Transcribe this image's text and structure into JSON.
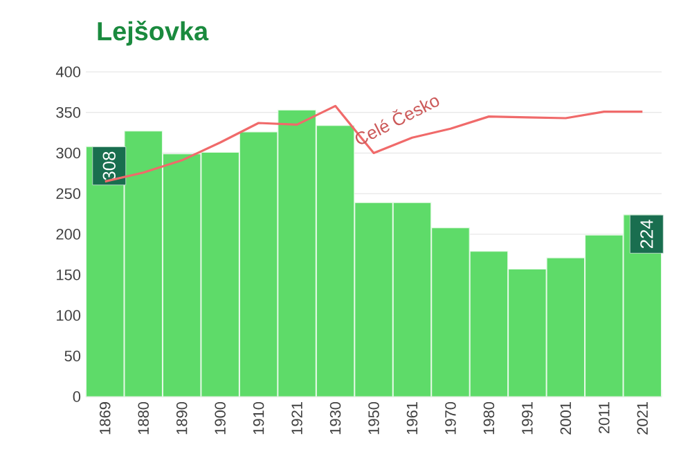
{
  "chart_data": {
    "type": "bar",
    "title": "Lejšovka",
    "categories": [
      "1869",
      "1880",
      "1890",
      "1900",
      "1910",
      "1921",
      "1930",
      "1950",
      "1961",
      "1970",
      "1980",
      "1991",
      "2001",
      "2011",
      "2021"
    ],
    "series": [
      {
        "color": "#5edb69",
        "values": [
          308,
          327,
          299,
          301,
          326,
          353,
          334,
          239,
          239,
          208,
          179,
          157,
          171,
          199,
          224
        ],
        "value_labels": [
          "308",
          null,
          null,
          null,
          null,
          null,
          null,
          null,
          null,
          null,
          null,
          null,
          null,
          null,
          "224"
        ]
      },
      {
        "type": "line",
        "name": "Celé Česko",
        "color": "#f06a6a",
        "values": [
          265,
          276,
          291,
          313,
          337,
          335,
          358,
          300,
          319,
          330,
          345,
          344,
          343,
          351,
          351
        ]
      }
    ],
    "ylim": [
      0,
      400
    ],
    "yticks": [
      0,
      50,
      100,
      150,
      200,
      250,
      300,
      350,
      400
    ],
    "grid": "y"
  }
}
